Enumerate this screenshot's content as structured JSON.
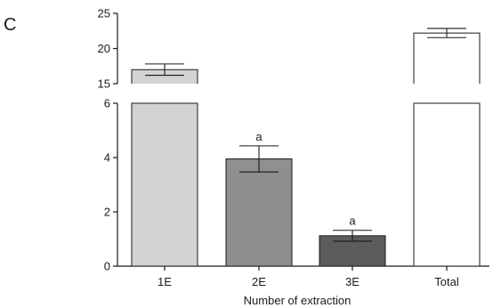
{
  "panel_label": "C",
  "chart_data": {
    "type": "bar",
    "axis_break": true,
    "categories": [
      "1E",
      "2E",
      "3E",
      "Total"
    ],
    "values": [
      17.0,
      3.95,
      1.12,
      22.2
    ],
    "errors": [
      0.8,
      0.48,
      0.2,
      0.65
    ],
    "bar_colors": [
      "#d3d3d3",
      "#8f8f8f",
      "#5c5c5c",
      "#ffffff"
    ],
    "annotations": [
      "",
      "a",
      "a",
      ""
    ],
    "xlabel": "Number of extraction",
    "ylabel": "",
    "lower_segment": {
      "ylim": [
        0,
        6
      ],
      "ticks": [
        0,
        2,
        4,
        6
      ]
    },
    "upper_segment": {
      "ylim": [
        15,
        25
      ],
      "ticks": [
        15,
        20,
        25
      ]
    }
  }
}
